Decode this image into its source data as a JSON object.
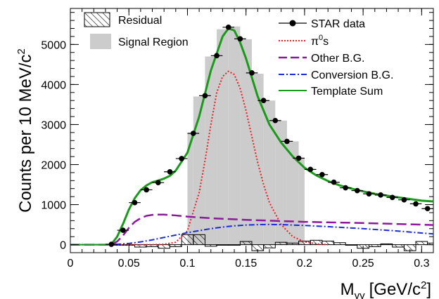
{
  "chart_data": {
    "type": "line",
    "xlabel": "M_γγ [GeV/c²]",
    "xlabel_parts": {
      "main": "M",
      "sub": "γγ",
      "unit_open": "[GeV/c",
      "unit_sup": "2",
      "unit_close": "]"
    },
    "ylabel": "Counts per 10 MeV/c²",
    "ylabel_parts": {
      "main": "Counts per 10 MeV/c",
      "sup": "2"
    },
    "xlim": [
      0,
      0.31
    ],
    "ylim": [
      -200,
      5900
    ],
    "x_ticks": [
      0,
      0.05,
      0.1,
      0.15,
      0.2,
      0.25,
      0.3
    ],
    "x_tick_labels": [
      "0",
      "0.05",
      "0.1",
      "0.15",
      "0.2",
      "0.25",
      "0.3"
    ],
    "y_ticks": [
      0,
      1000,
      2000,
      3000,
      4000,
      5000
    ],
    "y_tick_labels": [
      "0",
      "1000",
      "2000",
      "3000",
      "4000",
      "5000"
    ],
    "grid": false,
    "legend_left": [
      {
        "label": "Residual",
        "style": "hatch"
      },
      {
        "label": "Signal Region",
        "style": "fill",
        "color": "#cccccc"
      }
    ],
    "legend_right": [
      {
        "label": "STAR data",
        "style": "marker",
        "color": "#000000"
      },
      {
        "label": "π⁰s",
        "label_main": "π",
        "label_sup": "0",
        "label_after": "s",
        "style": "dotted",
        "color": "#e8202a"
      },
      {
        "label": "Other B.G.",
        "style": "dashed",
        "color": "#8b1a9b"
      },
      {
        "label": "Conversion B.G.",
        "style": "dashdot",
        "color": "#1a2ad8"
      },
      {
        "label": "Template Sum",
        "style": "solid",
        "color": "#1a9a1a"
      }
    ],
    "signal_region": {
      "x": [
        0.1,
        0.11,
        0.12,
        0.13,
        0.14,
        0.15,
        0.16,
        0.17,
        0.18,
        0.19,
        0.2
      ],
      "y": [
        2780,
        3700,
        4700,
        5380,
        5450,
        5130,
        4270,
        3600,
        3100,
        2580,
        2150
      ]
    },
    "series": [
      {
        "name": "STAR data",
        "style": "marker",
        "color": "#000000",
        "bin_halfwidth": 0.005,
        "x": [
          0.035,
          0.045,
          0.055,
          0.065,
          0.075,
          0.085,
          0.095,
          0.105,
          0.115,
          0.125,
          0.135,
          0.145,
          0.155,
          0.165,
          0.175,
          0.185,
          0.195,
          0.205,
          0.215,
          0.225,
          0.235,
          0.245,
          0.255,
          0.265,
          0.275,
          0.285,
          0.295,
          0.305
        ],
        "y": [
          10,
          360,
          1050,
          1370,
          1550,
          1820,
          2150,
          2780,
          3720,
          4720,
          5430,
          5140,
          4290,
          3600,
          3100,
          2580,
          2160,
          1880,
          1750,
          1560,
          1420,
          1350,
          1270,
          1240,
          1180,
          1120,
          1020,
          900
        ]
      },
      {
        "name": "π⁰s",
        "style": "dotted",
        "color": "#e8202a",
        "x": [
          0.035,
          0.05,
          0.06,
          0.07,
          0.08,
          0.09,
          0.1,
          0.11,
          0.115,
          0.12,
          0.125,
          0.13,
          0.135,
          0.14,
          0.145,
          0.15,
          0.155,
          0.16,
          0.165,
          0.17,
          0.18,
          0.19,
          0.2,
          0.21,
          0.22
        ],
        "y": [
          0,
          0,
          0,
          0,
          10,
          60,
          350,
          1300,
          2100,
          3000,
          3800,
          4200,
          4330,
          4250,
          3900,
          3350,
          2700,
          2050,
          1500,
          1050,
          500,
          200,
          70,
          20,
          0
        ]
      },
      {
        "name": "Other B.G.",
        "style": "dashed",
        "color": "#8b1a9b",
        "x": [
          0,
          0.035,
          0.04,
          0.045,
          0.05,
          0.055,
          0.06,
          0.065,
          0.07,
          0.075,
          0.08,
          0.09,
          0.1,
          0.12,
          0.15,
          0.18,
          0.2,
          0.25,
          0.3,
          0.31
        ],
        "y": [
          0,
          0,
          80,
          230,
          420,
          570,
          660,
          720,
          745,
          750,
          750,
          730,
          700,
          660,
          620,
          590,
          570,
          540,
          500,
          490
        ]
      },
      {
        "name": "Conversion B.G.",
        "style": "dashdot",
        "color": "#1a2ad8",
        "x": [
          0,
          0.035,
          0.05,
          0.06,
          0.07,
          0.08,
          0.09,
          0.1,
          0.11,
          0.12,
          0.13,
          0.14,
          0.15,
          0.16,
          0.17,
          0.18,
          0.2,
          0.22,
          0.25,
          0.28,
          0.3,
          0.31
        ],
        "y": [
          0,
          0,
          30,
          70,
          120,
          180,
          240,
          300,
          350,
          400,
          440,
          470,
          490,
          500,
          505,
          500,
          480,
          450,
          400,
          340,
          290,
          270
        ]
      },
      {
        "name": "Template Sum",
        "style": "solid",
        "color": "#1a9a1a",
        "x": [
          0.035,
          0.04,
          0.045,
          0.05,
          0.055,
          0.06,
          0.065,
          0.07,
          0.075,
          0.08,
          0.085,
          0.09,
          0.1,
          0.11,
          0.12,
          0.13,
          0.135,
          0.14,
          0.145,
          0.15,
          0.16,
          0.17,
          0.18,
          0.19,
          0.2,
          0.21,
          0.22,
          0.23,
          0.24,
          0.25,
          0.26,
          0.28,
          0.3,
          0.31
        ],
        "y": [
          10,
          200,
          520,
          880,
          1160,
          1360,
          1480,
          1560,
          1600,
          1650,
          1720,
          1850,
          2300,
          3200,
          4350,
          5200,
          5400,
          5350,
          5050,
          4650,
          3700,
          3000,
          2550,
          2200,
          1920,
          1730,
          1590,
          1480,
          1400,
          1330,
          1270,
          1180,
          1100,
          1080
        ]
      },
      {
        "name": "Residual",
        "style": "hatch-step",
        "color": "#000000",
        "bin_edges": [
          0.035,
          0.045,
          0.055,
          0.065,
          0.075,
          0.085,
          0.095,
          0.105,
          0.115,
          0.125,
          0.135,
          0.145,
          0.155,
          0.165,
          0.175,
          0.185,
          0.195,
          0.205,
          0.215,
          0.225,
          0.235,
          0.245,
          0.255,
          0.265,
          0.275,
          0.285,
          0.295,
          0.305,
          0.31
        ],
        "values": [
          0,
          0,
          -60,
          -50,
          -90,
          -50,
          250,
          250,
          -40,
          0,
          0,
          80,
          -150,
          -80,
          60,
          40,
          90,
          110,
          90,
          50,
          0,
          -90,
          -50,
          20,
          -60,
          -150,
          80,
          40
        ]
      }
    ]
  }
}
